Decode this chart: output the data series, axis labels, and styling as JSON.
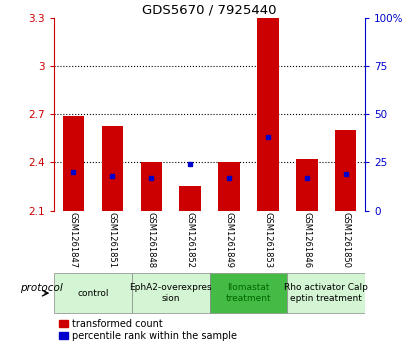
{
  "title": "GDS5670 / 7925440",
  "samples": [
    "GSM1261847",
    "GSM1261851",
    "GSM1261848",
    "GSM1261852",
    "GSM1261849",
    "GSM1261853",
    "GSM1261846",
    "GSM1261850"
  ],
  "red_values": [
    2.69,
    2.63,
    2.4,
    2.25,
    2.4,
    3.3,
    2.42,
    2.6
  ],
  "blue_pct": [
    20,
    18,
    17,
    24,
    17,
    38,
    17,
    19
  ],
  "ymin": 2.1,
  "ymax": 3.3,
  "yticks": [
    2.1,
    2.4,
    2.7,
    3.0,
    3.3
  ],
  "ytick_labels": [
    "2.1",
    "2.4",
    "2.7",
    "3",
    "3.3"
  ],
  "y2ticks": [
    0,
    25,
    50,
    75,
    100
  ],
  "y2tick_labels": [
    "0",
    "25",
    "50",
    "75",
    "100%"
  ],
  "dotted_lines": [
    3.0,
    2.7,
    2.4
  ],
  "protocols": [
    {
      "label": "control",
      "start": 0,
      "end": 1,
      "color": "#d4f5d4",
      "text_color": "#000000"
    },
    {
      "label": "EphA2-overexpres\nsion",
      "start": 2,
      "end": 3,
      "color": "#d4f5d4",
      "text_color": "#000000"
    },
    {
      "label": "Ilomastat\ntreatment",
      "start": 4,
      "end": 5,
      "color": "#44bb44",
      "text_color": "#006600"
    },
    {
      "label": "Rho activator Calp\neptin treatment",
      "start": 6,
      "end": 7,
      "color": "#d4f5d4",
      "text_color": "#000000"
    }
  ],
  "bar_width": 0.55,
  "red_color": "#cc0000",
  "blue_color": "#0000cc",
  "bg_color": "#ffffff",
  "axis_left_color": "#cc0000",
  "axis_right_color": "#0000cc",
  "legend_red_label": "transformed count",
  "legend_blue_label": "percentile rank within the sample",
  "protocol_label": "protocol",
  "xticklabel_gray_bg": "#cccccc"
}
